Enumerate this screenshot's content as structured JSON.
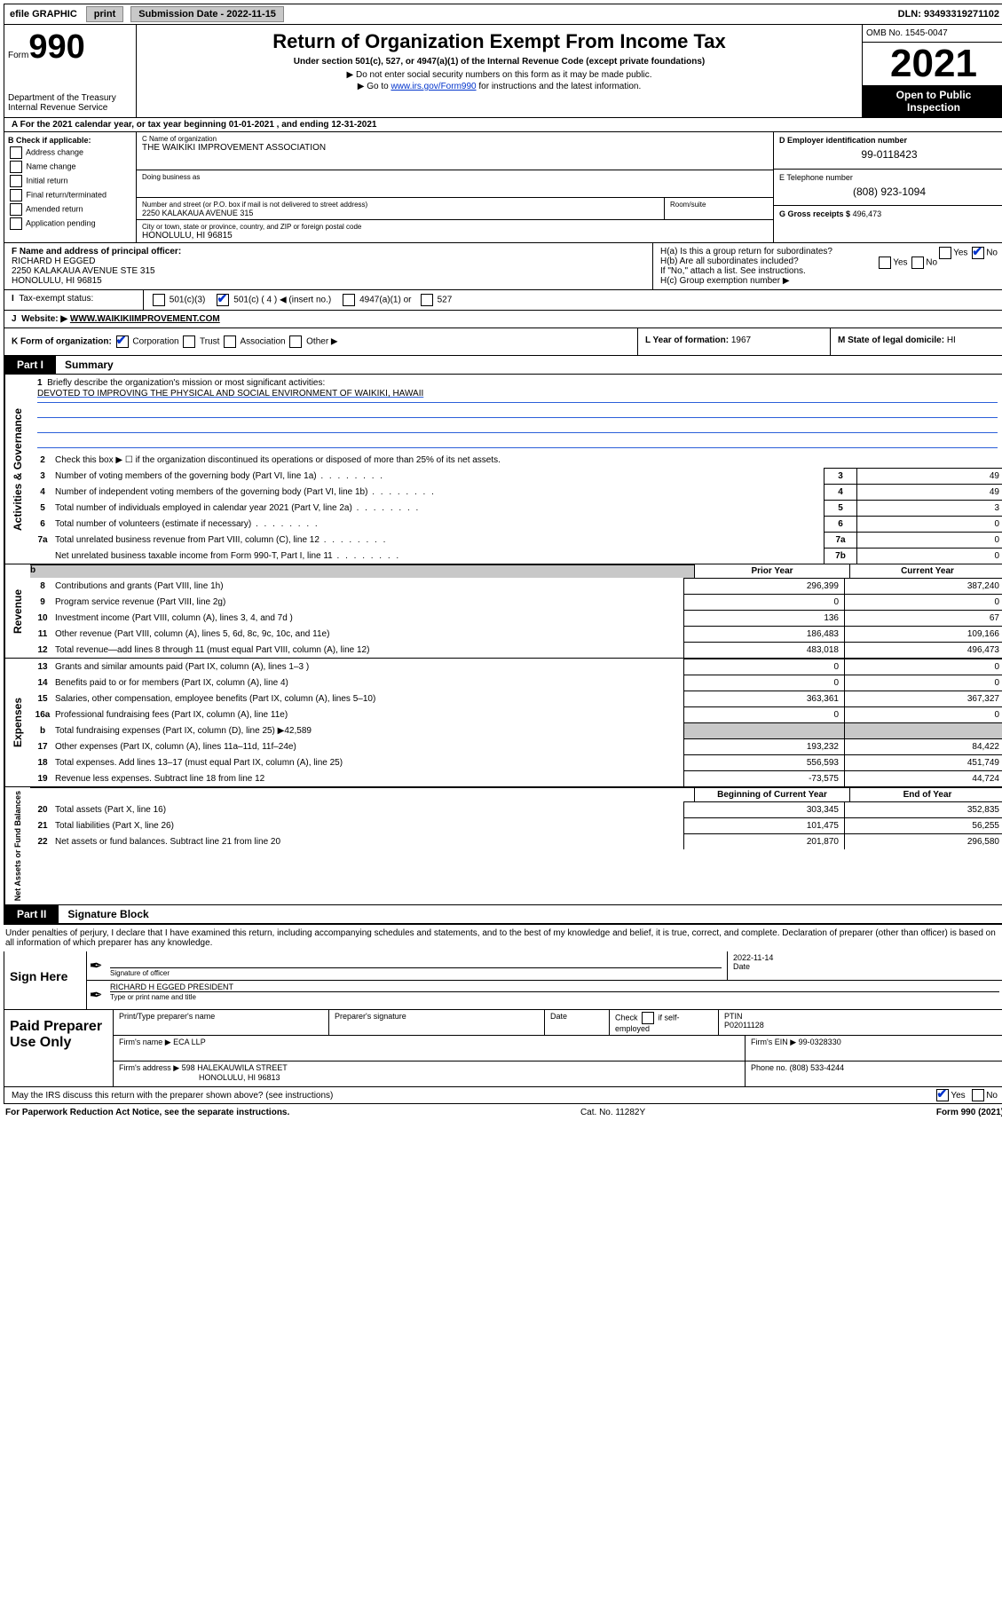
{
  "topbar": {
    "efile": "efile GRAPHIC",
    "print": "print",
    "sub_label": "Submission Date - 2022-11-15",
    "dln": "DLN: 93493319271102"
  },
  "header": {
    "form_word": "Form",
    "form_num": "990",
    "dept": "Department of the Treasury",
    "irs": "Internal Revenue Service",
    "title": "Return of Organization Exempt From Income Tax",
    "sub": "Under section 501(c), 527, or 4947(a)(1) of the Internal Revenue Code (except private foundations)",
    "note1": "▶ Do not enter social security numbers on this form as it may be made public.",
    "note2_pre": "▶ Go to ",
    "note2_link": "www.irs.gov/Form990",
    "note2_post": " for instructions and the latest information.",
    "omb": "OMB No. 1545-0047",
    "year": "2021",
    "inspect1": "Open to Public",
    "inspect2": "Inspection"
  },
  "a": {
    "text": "A For the 2021 calendar year, or tax year beginning 01-01-2021   , and ending 12-31-2021"
  },
  "b": {
    "label": "B Check if applicable:",
    "addr": "Address change",
    "name": "Name change",
    "init": "Initial return",
    "final": "Final return/terminated",
    "amend": "Amended return",
    "app": "Application pending"
  },
  "c": {
    "label": "C Name of organization",
    "name": "THE WAIKIKI IMPROVEMENT ASSOCIATION",
    "dba_label": "Doing business as",
    "addr_label": "Number and street (or P.O. box if mail is not delivered to street address)",
    "room_label": "Room/suite",
    "addr": "2250 KALAKAUA AVENUE 315",
    "city_label": "City or town, state or province, country, and ZIP or foreign postal code",
    "city": "HONOLULU, HI  96815"
  },
  "d": {
    "label": "D Employer identification number",
    "val": "99-0118423"
  },
  "e": {
    "label": "E Telephone number",
    "val": "(808) 923-1094"
  },
  "g": {
    "label": "G Gross receipts $",
    "val": "496,473"
  },
  "f": {
    "label": "F Name and address of principal officer:",
    "name": "RICHARD H EGGED",
    "addr1": "2250 KALAKAUA AVENUE STE 315",
    "addr2": "HONOLULU, HI  96815"
  },
  "h": {
    "a": "H(a)  Is this a group return for subordinates?",
    "b": "H(b)  Are all subordinates included?",
    "note": "If \"No,\" attach a list. See instructions.",
    "c": "H(c)  Group exemption number ▶"
  },
  "i": {
    "label": "Tax-exempt status:",
    "c3": "501(c)(3)",
    "c": "501(c) ( 4 ) ◀ (insert no.)",
    "a1": "4947(a)(1) or",
    "s527": "527"
  },
  "j": {
    "label": "Website: ▶",
    "val": "WWW.WAIKIKIIMPROVEMENT.COM"
  },
  "k": {
    "label": "K Form of organization:",
    "corp": "Corporation",
    "trust": "Trust",
    "assoc": "Association",
    "other": "Other ▶"
  },
  "l": {
    "label": "L Year of formation:",
    "val": "1967"
  },
  "m": {
    "label": "M State of legal domicile:",
    "val": "HI"
  },
  "part1": {
    "tab": "Part I",
    "title": "Summary"
  },
  "sections": {
    "gov": "Activities & Governance",
    "rev": "Revenue",
    "exp": "Expenses",
    "net": "Net Assets or Fund Balances"
  },
  "q1": {
    "label": "Briefly describe the organization's mission or most significant activities:",
    "text": "DEVOTED TO IMPROVING THE PHYSICAL AND SOCIAL ENVIRONMENT OF WAIKIKI, HAWAII"
  },
  "q2": "Check this box ▶ ☐  if the organization discontinued its operations or disposed of more than 25% of its net assets.",
  "rows_single": [
    {
      "n": "3",
      "d": "Number of voting members of the governing body (Part VI, line 1a)",
      "rn": "3",
      "v": "49"
    },
    {
      "n": "4",
      "d": "Number of independent voting members of the governing body (Part VI, line 1b)",
      "rn": "4",
      "v": "49"
    },
    {
      "n": "5",
      "d": "Total number of individuals employed in calendar year 2021 (Part V, line 2a)",
      "rn": "5",
      "v": "3"
    },
    {
      "n": "6",
      "d": "Total number of volunteers (estimate if necessary)",
      "rn": "6",
      "v": "0"
    },
    {
      "n": "7a",
      "d": "Total unrelated business revenue from Part VIII, column (C), line 12",
      "rn": "7a",
      "v": "0"
    },
    {
      "n": "",
      "d": "Net unrelated business taxable income from Form 990-T, Part I, line 11",
      "rn": "7b",
      "v": "0"
    }
  ],
  "two_hdr": {
    "c1": "Prior Year",
    "c2": "Current Year"
  },
  "rev_rows": [
    {
      "n": "8",
      "d": "Contributions and grants (Part VIII, line 1h)",
      "c1": "296,399",
      "c2": "387,240"
    },
    {
      "n": "9",
      "d": "Program service revenue (Part VIII, line 2g)",
      "c1": "0",
      "c2": "0"
    },
    {
      "n": "10",
      "d": "Investment income (Part VIII, column (A), lines 3, 4, and 7d )",
      "c1": "136",
      "c2": "67"
    },
    {
      "n": "11",
      "d": "Other revenue (Part VIII, column (A), lines 5, 6d, 8c, 9c, 10c, and 11e)",
      "c1": "186,483",
      "c2": "109,166"
    },
    {
      "n": "12",
      "d": "Total revenue—add lines 8 through 11 (must equal Part VIII, column (A), line 12)",
      "c1": "483,018",
      "c2": "496,473"
    }
  ],
  "exp_rows": [
    {
      "n": "13",
      "d": "Grants and similar amounts paid (Part IX, column (A), lines 1–3 )",
      "c1": "0",
      "c2": "0"
    },
    {
      "n": "14",
      "d": "Benefits paid to or for members (Part IX, column (A), line 4)",
      "c1": "0",
      "c2": "0"
    },
    {
      "n": "15",
      "d": "Salaries, other compensation, employee benefits (Part IX, column (A), lines 5–10)",
      "c1": "363,361",
      "c2": "367,327"
    },
    {
      "n": "16a",
      "d": "Professional fundraising fees (Part IX, column (A), line 11e)",
      "c1": "0",
      "c2": "0"
    },
    {
      "n": "b",
      "d": "Total fundraising expenses (Part IX, column (D), line 25) ▶42,589",
      "c1": "gray",
      "c2": "gray"
    },
    {
      "n": "17",
      "d": "Other expenses (Part IX, column (A), lines 11a–11d, 11f–24e)",
      "c1": "193,232",
      "c2": "84,422"
    },
    {
      "n": "18",
      "d": "Total expenses. Add lines 13–17 (must equal Part IX, column (A), line 25)",
      "c1": "556,593",
      "c2": "451,749"
    },
    {
      "n": "19",
      "d": "Revenue less expenses. Subtract line 18 from line 12",
      "c1": "-73,575",
      "c2": "44,724"
    }
  ],
  "net_hdr": {
    "c1": "Beginning of Current Year",
    "c2": "End of Year"
  },
  "net_rows": [
    {
      "n": "20",
      "d": "Total assets (Part X, line 16)",
      "c1": "303,345",
      "c2": "352,835"
    },
    {
      "n": "21",
      "d": "Total liabilities (Part X, line 26)",
      "c1": "101,475",
      "c2": "56,255"
    },
    {
      "n": "22",
      "d": "Net assets or fund balances. Subtract line 21 from line 20",
      "c1": "201,870",
      "c2": "296,580"
    }
  ],
  "part2": {
    "tab": "Part II",
    "title": "Signature Block"
  },
  "sig_para": "Under penalties of perjury, I declare that I have examined this return, including accompanying schedules and statements, and to the best of my knowledge and belief, it is true, correct, and complete. Declaration of preparer (other than officer) is based on all information of which preparer has any knowledge.",
  "sign": {
    "here": "Sign Here",
    "sig_label": "Signature of officer",
    "date_label": "Date",
    "date": "2022-11-14",
    "name": "RICHARD H EGGED  PRESIDENT",
    "name_label": "Type or print name and title"
  },
  "prep": {
    "here": "Paid Preparer Use Only",
    "h1": "Print/Type preparer's name",
    "h2": "Preparer's signature",
    "h3": "Date",
    "h4_pre": "Check",
    "h4_post": "if self-employed",
    "h5": "PTIN",
    "ptin": "P02011128",
    "firm_name_label": "Firm's name    ▶",
    "firm_name": "ECA LLP",
    "firm_ein_label": "Firm's EIN ▶",
    "firm_ein": "99-0328330",
    "firm_addr_label": "Firm's address ▶",
    "firm_addr1": "598 HALEKAUWILA STREET",
    "firm_addr2": "HONOLULU, HI  96813",
    "phone_label": "Phone no.",
    "phone": "(808) 533-4244"
  },
  "discuss": "May the IRS discuss this return with the preparer shown above? (see instructions)",
  "footer": {
    "left": "For Paperwork Reduction Act Notice, see the separate instructions.",
    "mid": "Cat. No. 11282Y",
    "right": "Form 990 (2021)"
  },
  "yesno": {
    "yes": "Yes",
    "no": "No"
  }
}
